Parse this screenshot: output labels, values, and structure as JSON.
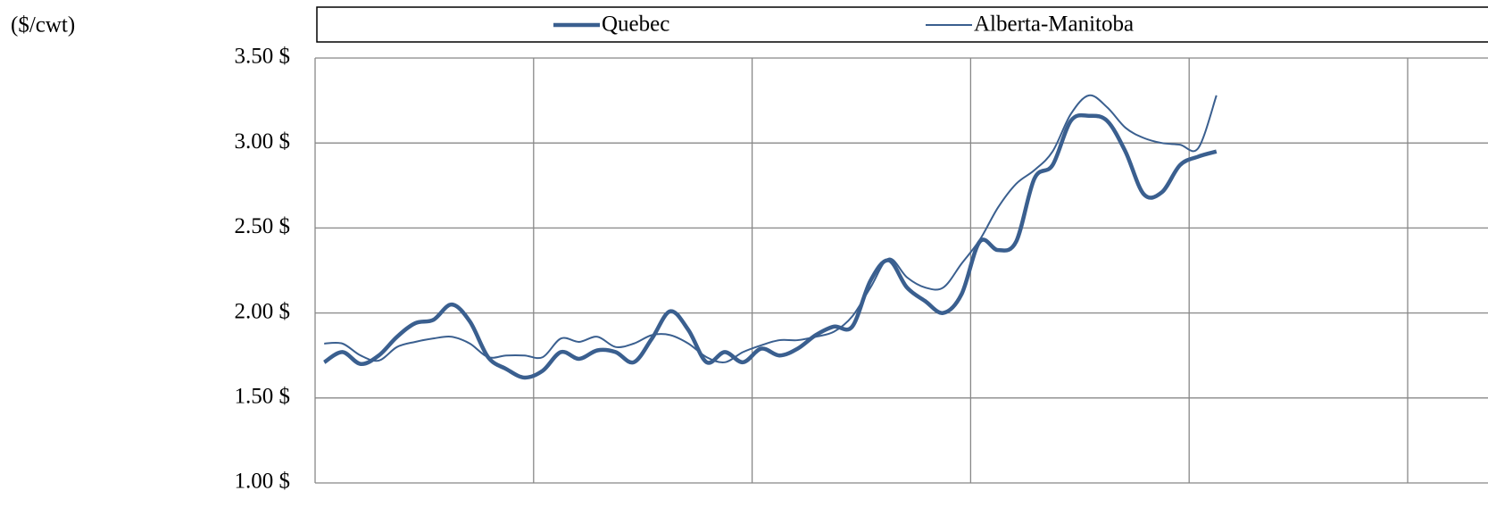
{
  "chart_data": {
    "type": "line",
    "ylabel": "($/cwt)",
    "categories": [
      null,
      null,
      null,
      null,
      null,
      null,
      null,
      null,
      null,
      null,
      null,
      null,
      null,
      null,
      null,
      null,
      null,
      null,
      null,
      null,
      null,
      null,
      null,
      null,
      null,
      null,
      null,
      null,
      null,
      null,
      null,
      null,
      null,
      null,
      null,
      null,
      null,
      null,
      null,
      null,
      null,
      null,
      null,
      null,
      null,
      null,
      null,
      null,
      null,
      null
    ],
    "series": [
      {
        "name": "Quebec",
        "color": "#3a5f8f",
        "values": [
          1.71,
          1.77,
          1.7,
          1.75,
          1.86,
          1.94,
          1.96,
          2.05,
          1.95,
          1.74,
          1.67,
          1.62,
          1.66,
          1.77,
          1.73,
          1.78,
          1.77,
          1.71,
          1.85,
          2.01,
          1.9,
          1.71,
          1.77,
          1.71,
          1.79,
          1.75,
          1.79,
          1.87,
          1.92,
          1.92,
          2.19,
          2.31,
          2.15,
          2.07,
          2.0,
          2.11,
          2.42,
          2.37,
          2.42,
          2.79,
          2.87,
          3.13,
          3.16,
          3.13,
          2.95,
          2.7,
          2.71,
          2.87,
          2.92,
          2.95
        ]
      },
      {
        "name": "Alberta-Manitoba",
        "color": "#3a5f8f",
        "values": [
          1.82,
          1.82,
          1.75,
          1.72,
          1.8,
          1.83,
          1.85,
          1.86,
          1.82,
          1.74,
          1.75,
          1.75,
          1.74,
          1.85,
          1.83,
          1.86,
          1.8,
          1.82,
          1.87,
          1.87,
          1.82,
          1.74,
          1.71,
          1.77,
          1.81,
          1.84,
          1.84,
          1.86,
          1.89,
          1.98,
          2.15,
          2.32,
          2.21,
          2.15,
          2.15,
          2.29,
          2.43,
          2.62,
          2.76,
          2.84,
          2.95,
          3.17,
          3.28,
          3.21,
          3.09,
          3.03,
          3.0,
          2.99,
          2.97,
          3.28
        ]
      }
    ],
    "ylim": [
      1.0,
      3.5
    ],
    "yticks": [
      {
        "value": 1.0,
        "label": "1.00 $"
      },
      {
        "value": 1.5,
        "label": "1.50 $"
      },
      {
        "value": 2.0,
        "label": "2.00 $"
      },
      {
        "value": 2.5,
        "label": "2.50 $"
      },
      {
        "value": 3.0,
        "label": "3.00 $"
      },
      {
        "value": 3.5,
        "label": "3.50 $"
      }
    ],
    "grid": true,
    "legend": "top"
  }
}
